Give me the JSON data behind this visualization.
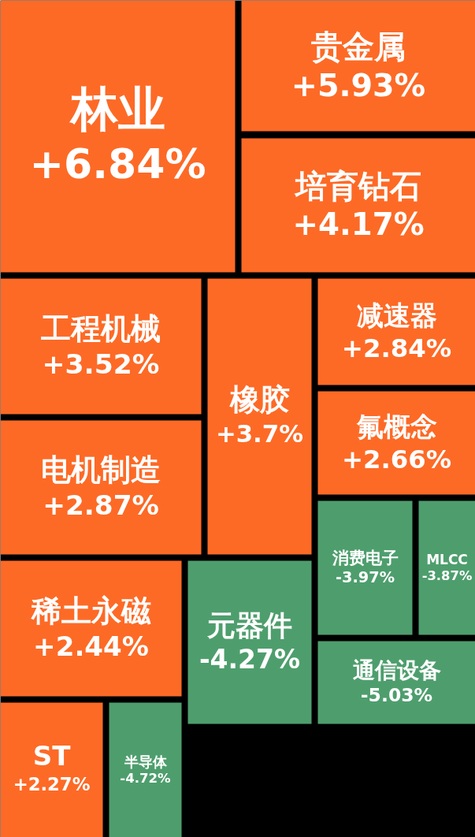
{
  "chart_data": {
    "type": "other",
    "categories": [
      "林业",
      "贵金属",
      "培育钻石",
      "工程机械",
      "橡胶",
      "减速器",
      "氟概念",
      "电机制造",
      "消费电子",
      "MLCC",
      "稀土永磁",
      "元器件",
      "通信设备",
      "ST",
      "半导体"
    ],
    "values": [
      6.84,
      5.93,
      4.17,
      3.52,
      3.7,
      2.84,
      2.66,
      2.87,
      -3.97,
      -3.87,
      2.44,
      -4.27,
      -5.03,
      2.27,
      -4.72
    ],
    "value_labels": [
      "+6.84%",
      "+5.93%",
      "+4.17%",
      "+3.52%",
      "+3.7%",
      "+2.84%",
      "+2.66%",
      "+2.87%",
      "-3.97%",
      "-3.87%",
      "+2.44%",
      "-4.27%",
      "-5.03%",
      "+2.27%",
      "-4.72%"
    ],
    "colors": [
      "#fd6a26",
      "#fd6a26",
      "#fd6a26",
      "#fd6a26",
      "#fd6a26",
      "#fd6a26",
      "#fd6a26",
      "#fd6a26",
      "#4e9e6d",
      "#4e9e6d",
      "#fd6a26",
      "#4e9e6d",
      "#4e9e6d",
      "#fd6a26",
      "#4e9e6d"
    ]
  }
}
